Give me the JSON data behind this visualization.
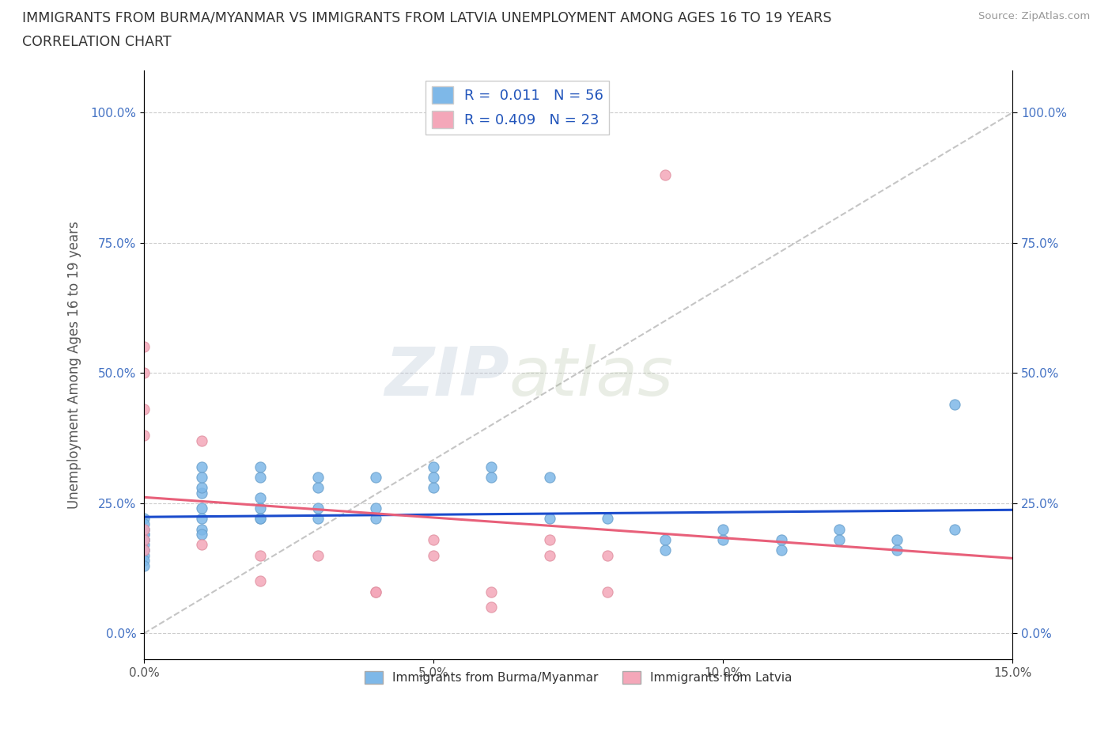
{
  "title_line1": "IMMIGRANTS FROM BURMA/MYANMAR VS IMMIGRANTS FROM LATVIA UNEMPLOYMENT AMONG AGES 16 TO 19 YEARS",
  "title_line2": "CORRELATION CHART",
  "source": "Source: ZipAtlas.com",
  "ylabel": "Unemployment Among Ages 16 to 19 years",
  "xlim": [
    0.0,
    0.15
  ],
  "ylim": [
    -0.05,
    1.08
  ],
  "yticks": [
    0.0,
    0.25,
    0.5,
    0.75,
    1.0
  ],
  "ytick_labels": [
    "0.0%",
    "25.0%",
    "50.0%",
    "75.0%",
    "100.0%"
  ],
  "xticks": [
    0.0,
    0.05,
    0.1,
    0.15
  ],
  "xtick_labels": [
    "0.0%",
    "5.0%",
    "10.0%",
    "15.0%"
  ],
  "watermark_zip": "ZIP",
  "watermark_atlas": "atlas",
  "legend_R1": "0.011",
  "legend_N1": "56",
  "legend_R2": "0.409",
  "legend_N2": "23",
  "color_burma": "#7EB8E8",
  "color_latvia": "#F4A7B9",
  "trendline_burma_color": "#1A4BCC",
  "trendline_latvia_color": "#E8607A",
  "diagonal_color": "#BBBBBB",
  "label_burma": "Immigrants from Burma/Myanmar",
  "label_latvia": "Immigrants from Latvia",
  "burma_x": [
    0.0,
    0.0,
    0.0,
    0.0,
    0.0,
    0.0,
    0.0,
    0.0,
    0.0,
    0.0,
    0.0,
    0.0,
    0.0,
    0.0,
    0.0,
    0.01,
    0.01,
    0.01,
    0.01,
    0.01,
    0.01,
    0.01,
    0.01,
    0.02,
    0.02,
    0.02,
    0.02,
    0.02,
    0.02,
    0.03,
    0.03,
    0.03,
    0.03,
    0.04,
    0.04,
    0.04,
    0.05,
    0.05,
    0.05,
    0.06,
    0.06,
    0.07,
    0.07,
    0.08,
    0.09,
    0.09,
    0.1,
    0.1,
    0.11,
    0.11,
    0.12,
    0.12,
    0.13,
    0.13,
    0.14,
    0.14
  ],
  "burma_y": [
    0.18,
    0.2,
    0.22,
    0.18,
    0.19,
    0.17,
    0.16,
    0.15,
    0.14,
    0.13,
    0.2,
    0.19,
    0.18,
    0.16,
    0.21,
    0.2,
    0.19,
    0.27,
    0.28,
    0.3,
    0.32,
    0.24,
    0.22,
    0.22,
    0.24,
    0.26,
    0.3,
    0.32,
    0.22,
    0.24,
    0.28,
    0.3,
    0.22,
    0.24,
    0.3,
    0.22,
    0.28,
    0.3,
    0.32,
    0.3,
    0.32,
    0.22,
    0.3,
    0.22,
    0.18,
    0.16,
    0.18,
    0.2,
    0.18,
    0.16,
    0.2,
    0.18,
    0.18,
    0.16,
    0.2,
    0.44
  ],
  "latvia_x": [
    0.0,
    0.0,
    0.0,
    0.0,
    0.0,
    0.0,
    0.0,
    0.01,
    0.01,
    0.02,
    0.02,
    0.03,
    0.04,
    0.04,
    0.05,
    0.05,
    0.06,
    0.06,
    0.07,
    0.07,
    0.08,
    0.08,
    0.09
  ],
  "latvia_y": [
    0.18,
    0.2,
    0.43,
    0.5,
    0.55,
    0.38,
    0.16,
    0.17,
    0.37,
    0.15,
    0.1,
    0.15,
    0.08,
    0.08,
    0.15,
    0.18,
    0.05,
    0.08,
    0.15,
    0.18,
    0.15,
    0.08,
    0.88
  ]
}
